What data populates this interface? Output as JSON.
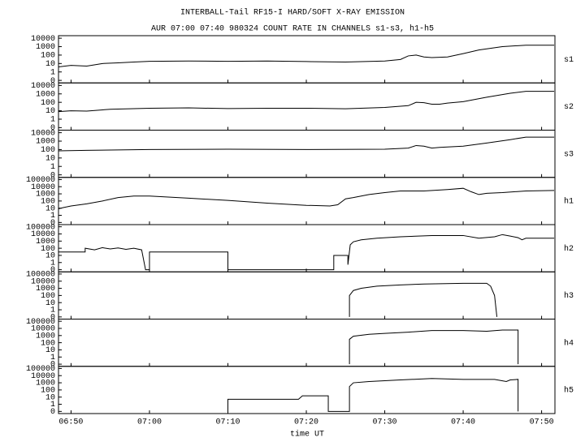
{
  "chart_data": [
    {
      "type": "line",
      "title": "INTERBALL-Tail RF15-I HARD/SOFT X-RAY EMISSION",
      "subtitle": "AUR 07:00 07:40 980324  COUNT RATE IN CHANNELS s1-s3, h1-h5",
      "label": "s1",
      "log": true,
      "color": "#000000",
      "xlim": [
        408.4,
        471.7
      ],
      "ylim": [
        0.05,
        20000
      ],
      "yticks": [
        {
          "value": 0.1,
          "label": "0"
        },
        1,
        10,
        100,
        1000,
        10000
      ],
      "x": [
        408.4,
        410,
        412,
        414,
        416,
        418,
        420,
        425,
        430,
        435,
        440,
        445,
        450,
        452,
        453,
        454,
        455,
        456,
        457,
        458,
        460,
        462,
        465,
        468,
        471.6
      ],
      "values": [
        4,
        6,
        5,
        10,
        12,
        15,
        18,
        20,
        18,
        20,
        17,
        15,
        20,
        30,
        80,
        100,
        60,
        50,
        55,
        60,
        150,
        400,
        1000,
        1500,
        1500
      ]
    },
    {
      "type": "line",
      "label": "s2",
      "log": true,
      "color": "#000000",
      "xlim": [
        408.4,
        471.7
      ],
      "ylim": [
        0.05,
        20000
      ],
      "yticks": [
        {
          "value": 0.1,
          "label": "0"
        },
        1,
        10,
        100,
        1000,
        10000
      ],
      "x": [
        408.4,
        410,
        412,
        415,
        420,
        425,
        430,
        435,
        440,
        445,
        450,
        453,
        454,
        455,
        456,
        457,
        458,
        460,
        463,
        466,
        468,
        471.6
      ],
      "values": [
        8,
        10,
        9,
        15,
        20,
        22,
        18,
        20,
        20,
        17,
        25,
        40,
        100,
        90,
        60,
        60,
        80,
        120,
        400,
        1200,
        2000,
        2000
      ]
    },
    {
      "type": "line",
      "label": "s3",
      "log": true,
      "color": "#000000",
      "xlim": [
        408.4,
        471.7
      ],
      "ylim": [
        0.05,
        20000
      ],
      "yticks": [
        {
          "value": 0.1,
          "label": "0"
        },
        1,
        10,
        100,
        1000,
        10000
      ],
      "x": [
        408.4,
        412,
        420,
        430,
        440,
        450,
        453,
        454,
        455,
        456,
        457,
        458,
        460,
        463,
        466,
        468,
        471.6
      ],
      "values": [
        70,
        80,
        100,
        110,
        100,
        110,
        150,
        300,
        250,
        150,
        180,
        200,
        250,
        600,
        1500,
        3000,
        3000
      ]
    },
    {
      "type": "line",
      "label": "h1",
      "log": true,
      "color": "#000000",
      "xlim": [
        408.4,
        471.7
      ],
      "ylim": [
        0.05,
        200000
      ],
      "yticks": [
        {
          "value": 0.1,
          "label": "0"
        },
        1,
        10,
        100,
        1000,
        10000,
        100000
      ],
      "x": [
        408.4,
        409,
        410,
        412,
        414,
        416,
        418,
        420,
        425,
        430,
        435,
        440,
        443,
        444,
        445,
        446,
        448,
        450,
        452,
        455,
        458,
        460,
        461,
        462,
        463,
        465,
        468,
        471.6
      ],
      "values": [
        8,
        12,
        20,
        40,
        100,
        300,
        500,
        500,
        250,
        120,
        50,
        25,
        20,
        30,
        200,
        300,
        800,
        1500,
        2500,
        2500,
        4000,
        6000,
        2000,
        800,
        1200,
        1500,
        2500,
        3000
      ]
    },
    {
      "type": "line",
      "label": "h2",
      "log": true,
      "color": "#000000",
      "xlim": [
        408.4,
        471.7
      ],
      "ylim": [
        0.05,
        200000
      ],
      "yticks": [
        {
          "value": 0.1,
          "label": "0"
        },
        1,
        10,
        100,
        1000,
        10000,
        100000
      ],
      "x": [
        408.4,
        411.8,
        411.8,
        413,
        414,
        415,
        416,
        417,
        418,
        419,
        419.5,
        420,
        420,
        430,
        430,
        443.5,
        443.5,
        445.3,
        445.3,
        445.6,
        446,
        447,
        449,
        452,
        456,
        460,
        462,
        464,
        465,
        466,
        467,
        467.5,
        468,
        471.6
      ],
      "values": [
        30,
        30,
        100,
        60,
        120,
        80,
        110,
        70,
        100,
        60,
        0.1,
        0.1,
        30,
        30,
        0.1,
        0.1,
        10,
        10,
        0.5,
        300,
        800,
        1500,
        2500,
        4000,
        6000,
        6000,
        2500,
        4000,
        8000,
        5000,
        3000,
        1500,
        2500,
        2500
      ]
    },
    {
      "type": "line",
      "label": "h3",
      "log": true,
      "color": "#000000",
      "xlim": [
        408.4,
        471.7
      ],
      "ylim": [
        0.05,
        200000
      ],
      "yticks": [
        {
          "value": 0.1,
          "label": "0"
        },
        1,
        10,
        100,
        1000,
        10000,
        100000
      ],
      "x": [
        445.5,
        445.5,
        446,
        447,
        449,
        452,
        455,
        460,
        463,
        463.5,
        464,
        464.3
      ],
      "values": [
        0.1,
        100,
        500,
        1000,
        2000,
        3000,
        4000,
        5000,
        5000,
        2000,
        100,
        0.1
      ]
    },
    {
      "type": "line",
      "label": "h4",
      "log": true,
      "color": "#000000",
      "xlim": [
        408.4,
        471.7
      ],
      "ylim": [
        0.05,
        200000
      ],
      "yticks": [
        {
          "value": 0.1,
          "label": "0"
        },
        1,
        10,
        100,
        1000,
        10000,
        100000
      ],
      "x": [
        445.5,
        445.5,
        446,
        448,
        450,
        453,
        456,
        460,
        463,
        465,
        467,
        467
      ],
      "values": [
        0.1,
        300,
        800,
        1500,
        2000,
        3000,
        5000,
        5000,
        4000,
        6000,
        6000,
        0.1
      ]
    },
    {
      "type": "line",
      "label": "h5",
      "log": true,
      "color": "#000000",
      "xlim": [
        408.4,
        471.7
      ],
      "ylim": [
        0.05,
        200000
      ],
      "yticks": [
        {
          "value": 0.1,
          "label": "0"
        },
        1,
        10,
        100,
        1000,
        10000,
        100000
      ],
      "xlabel": "time UT",
      "xticks": [
        {
          "value": 410,
          "label": "06:50"
        },
        {
          "value": 420,
          "label": "07:00"
        },
        {
          "value": 430,
          "label": "07:10"
        },
        {
          "value": 440,
          "label": "07:20"
        },
        {
          "value": 450,
          "label": "07:30"
        },
        {
          "value": 460,
          "label": "07:40"
        },
        {
          "value": 470,
          "label": "07:50"
        }
      ],
      "x": [
        430,
        430,
        439,
        439.5,
        440.5,
        441,
        442.8,
        442.8,
        445.5,
        445.5,
        446,
        448,
        452,
        456,
        460,
        464,
        465.5,
        466,
        467,
        467
      ],
      "values": [
        0.1,
        5,
        5,
        15,
        15,
        15,
        15,
        0.1,
        0.1,
        300,
        1000,
        1500,
        2500,
        4000,
        3000,
        3000,
        1500,
        2500,
        3000,
        0.1
      ]
    }
  ]
}
